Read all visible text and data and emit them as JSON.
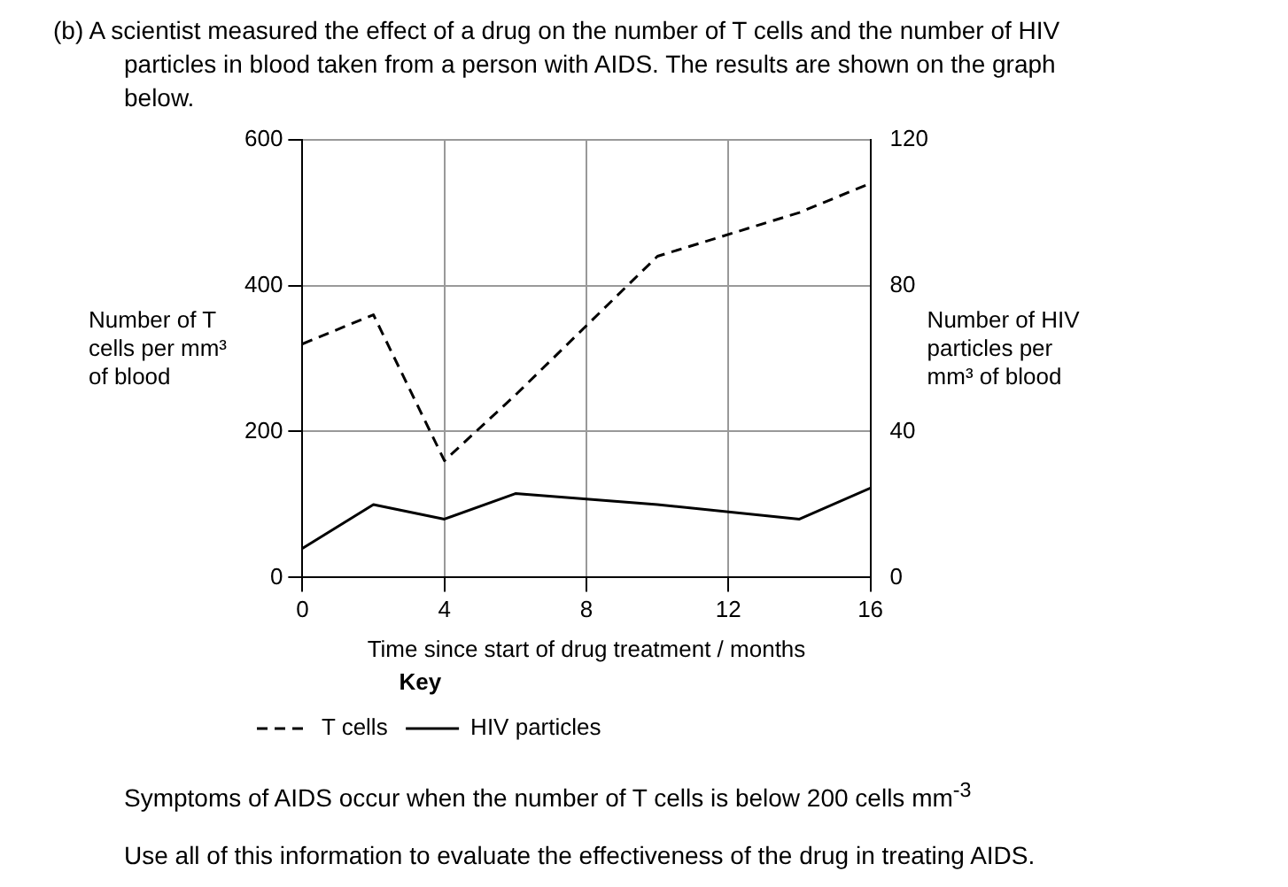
{
  "chart_data": {
    "type": "line",
    "title": "(b) A scientist measured the effect of a drug on the number of T cells and the number of HIV particles in blood taken from a person with AIDS. The results are shown on the graph below.",
    "xlabel": "Time since start of drug treatment / months",
    "ylabel": "Number of T cells per mm³ of blood",
    "y2label": "Number of HIV particles per mm³ of blood",
    "legend_title": "Key",
    "series": [
      {
        "name": "T cells",
        "color": "#000000",
        "line_style": "dashed",
        "x": [
          0,
          2,
          4,
          6,
          10,
          14,
          16
        ],
        "values": [
          320,
          360,
          160,
          250,
          440,
          500,
          540
        ]
      },
      {
        "name": "HIV particles",
        "color": "#000000",
        "line_style": "solid",
        "axis": "y2",
        "x": [
          0,
          2,
          4,
          6,
          10,
          14,
          16
        ],
        "values": [
          8,
          20,
          16,
          23,
          20,
          16,
          24.5
        ]
      }
    ],
    "xlim": [
      0,
      16
    ],
    "xticks": [
      0,
      4,
      8,
      12,
      16
    ],
    "ylim": [
      0,
      600
    ],
    "yticks": [
      0,
      200,
      400,
      600
    ],
    "y2lim": [
      0,
      120
    ],
    "y2ticks": [
      0,
      40,
      80,
      120
    ],
    "grid": true,
    "legend": "bottom left",
    "marker": "none",
    "annotations": [
      "Symptoms of AIDS occur when the number of T cells is below 200 cells mm$^{-3}$",
      "Use all of this information to evaluate the effectiveness of the drug in treating AIDS."
    ]
  }
}
